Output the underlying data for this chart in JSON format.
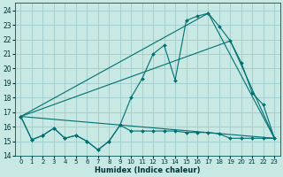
{
  "xlabel": "Humidex (Indice chaleur)",
  "xlim": [
    -0.5,
    23.5
  ],
  "ylim": [
    14,
    24.5
  ],
  "yticks": [
    14,
    15,
    16,
    17,
    18,
    19,
    20,
    21,
    22,
    23,
    24
  ],
  "xticks": [
    0,
    1,
    2,
    3,
    4,
    5,
    6,
    7,
    8,
    9,
    10,
    11,
    12,
    13,
    14,
    15,
    16,
    17,
    18,
    19,
    20,
    21,
    22,
    23
  ],
  "bg_color": "#c8e8e4",
  "grid_color": "#a0cccc",
  "line_color": "#007070",
  "series_flat": {
    "x": [
      0,
      1,
      2,
      3,
      4,
      5,
      6,
      7,
      8,
      9,
      10,
      11,
      12,
      13,
      14,
      15,
      16,
      17,
      18,
      19,
      20,
      21,
      22,
      23
    ],
    "y": [
      16.7,
      15.1,
      15.4,
      15.9,
      15.2,
      15.4,
      15.0,
      14.4,
      15.0,
      16.1,
      15.7,
      15.7,
      15.7,
      15.7,
      15.7,
      15.6,
      15.6,
      15.6,
      15.5,
      15.2,
      15.2,
      15.2,
      15.2,
      15.2
    ]
  },
  "series_main": {
    "x": [
      0,
      1,
      2,
      3,
      4,
      5,
      6,
      7,
      8,
      9,
      10,
      11,
      12,
      13,
      14,
      15,
      16,
      17,
      18,
      19,
      20,
      21,
      22,
      23
    ],
    "y": [
      16.7,
      15.1,
      15.4,
      15.9,
      15.2,
      15.4,
      15.0,
      14.4,
      15.0,
      16.1,
      18.0,
      19.3,
      21.0,
      21.6,
      19.2,
      23.3,
      23.6,
      23.8,
      22.9,
      21.9,
      20.4,
      18.3,
      17.5,
      15.2
    ]
  },
  "line1": {
    "x": [
      0,
      23
    ],
    "y": [
      16.7,
      15.2
    ]
  },
  "line2": {
    "x": [
      0,
      17,
      23
    ],
    "y": [
      16.7,
      23.8,
      15.2
    ]
  },
  "line3": {
    "x": [
      0,
      19,
      23
    ],
    "y": [
      16.7,
      21.9,
      15.2
    ]
  }
}
